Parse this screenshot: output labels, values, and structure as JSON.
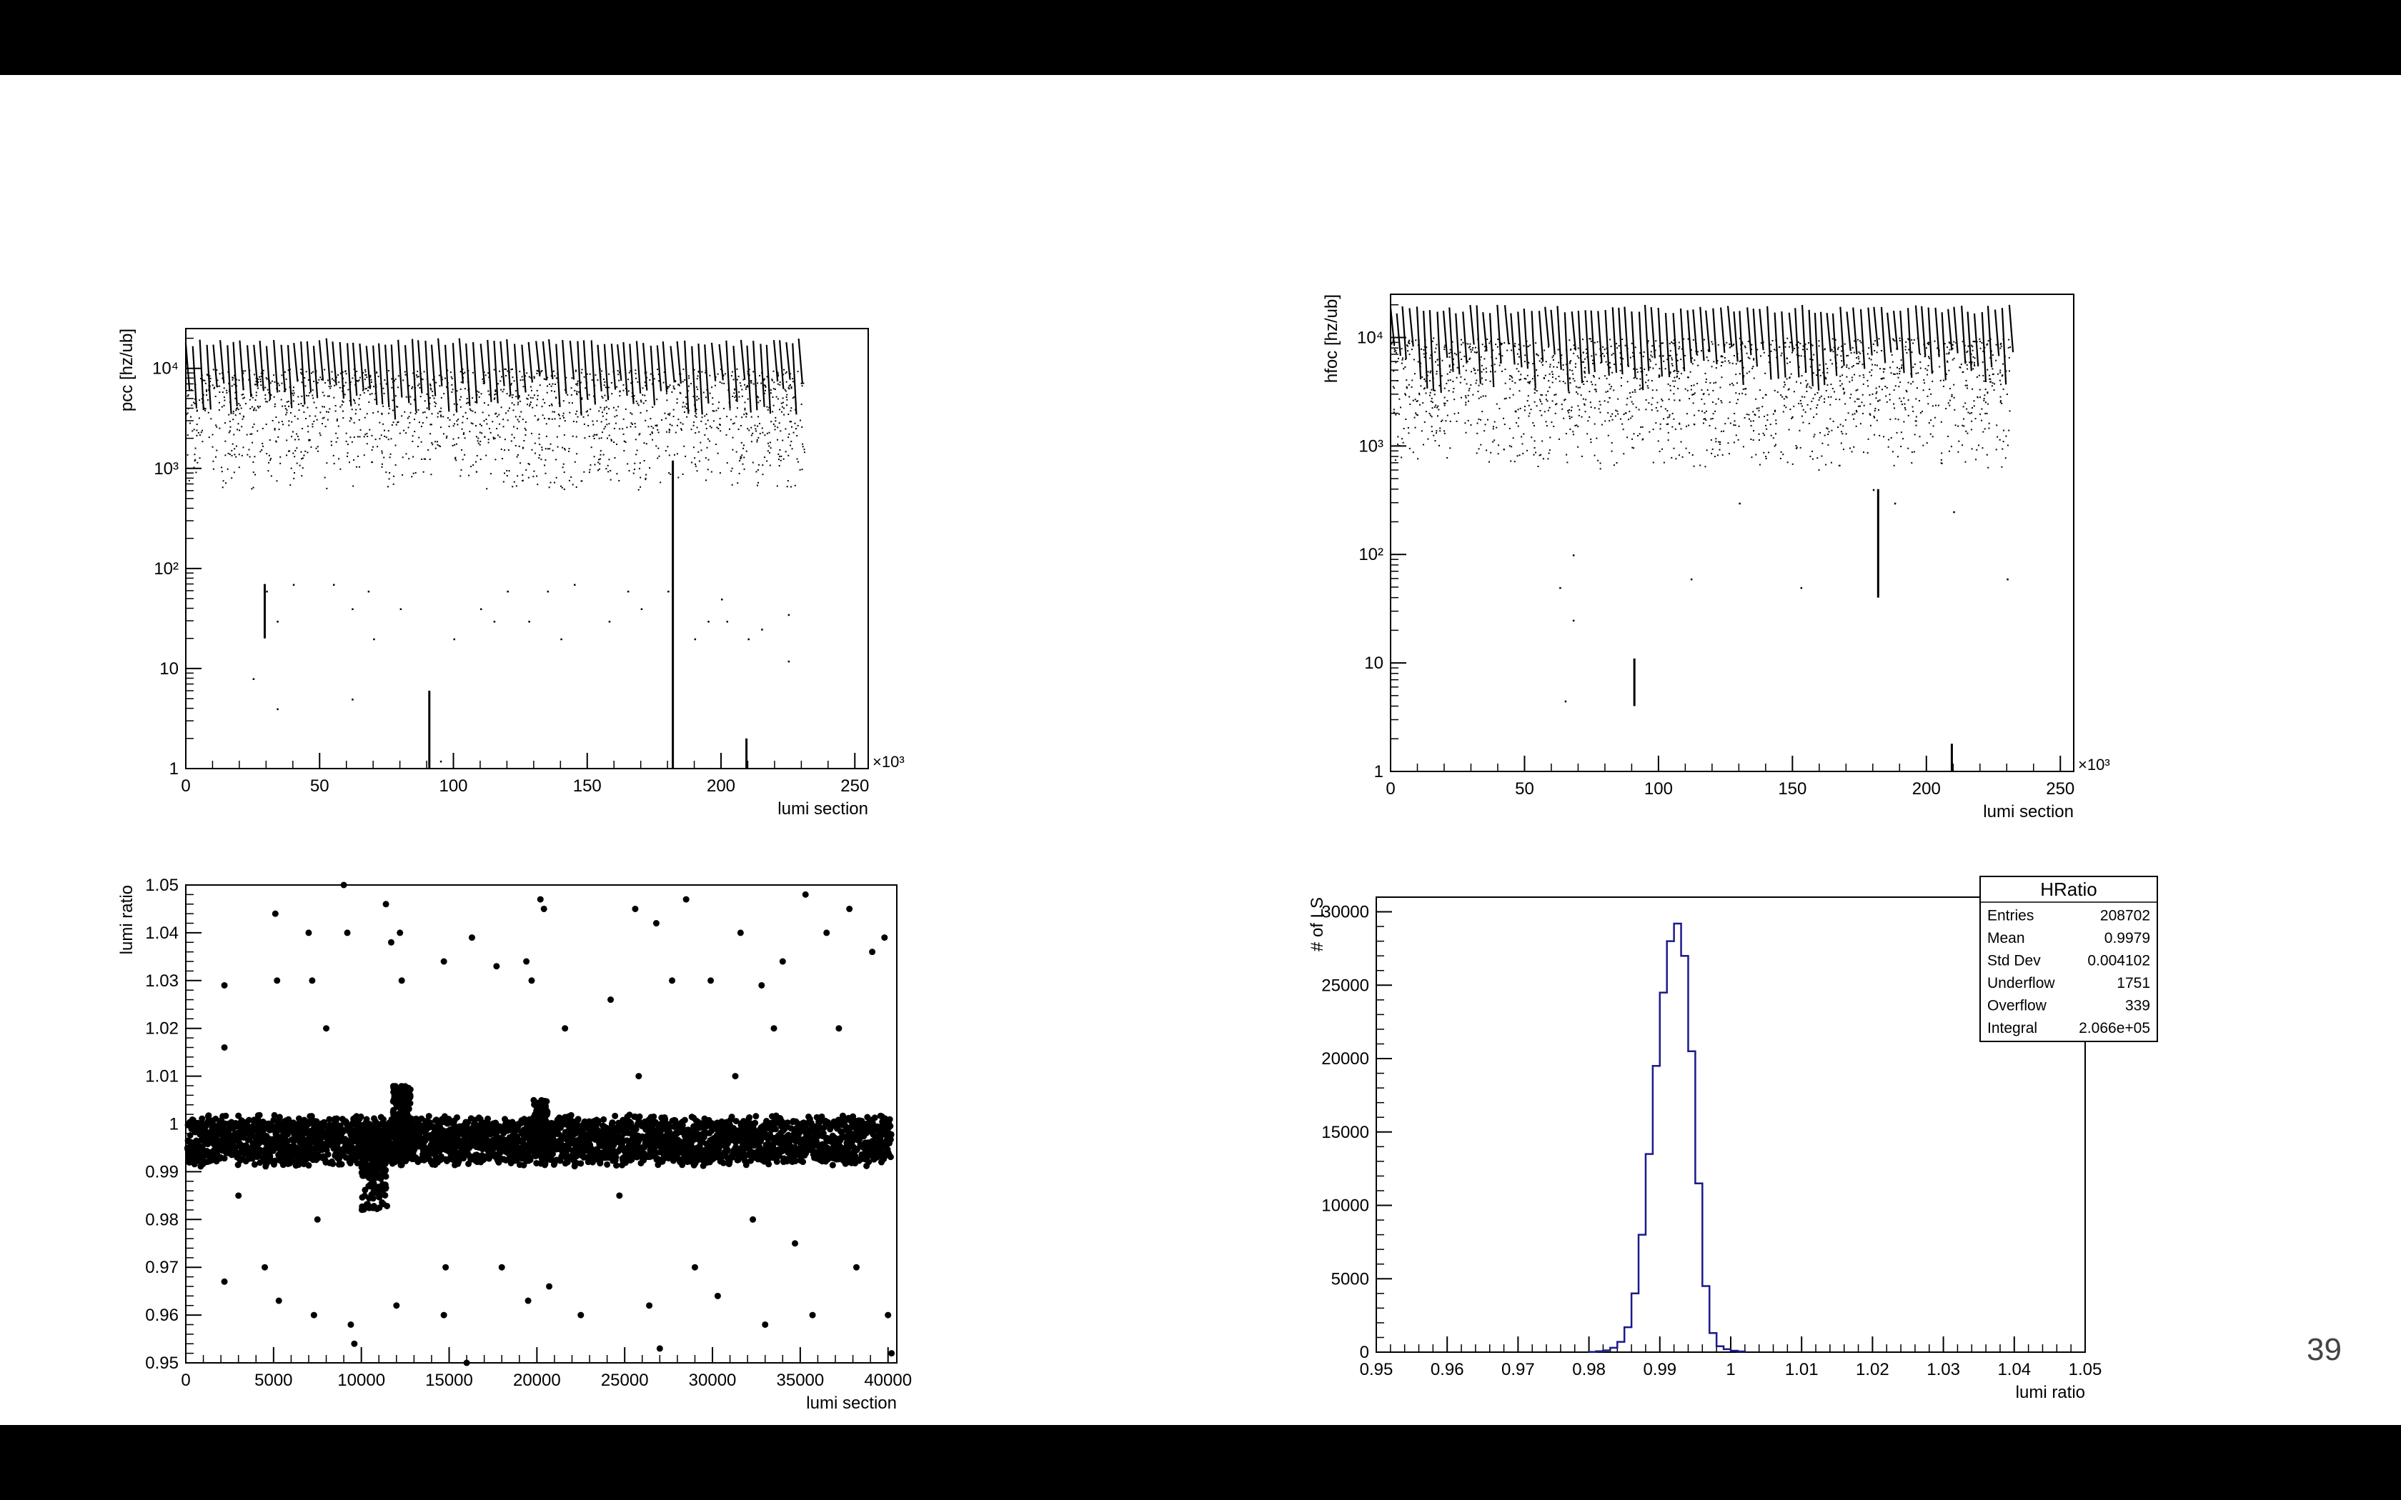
{
  "slide": {
    "page_number": "39"
  },
  "chart_data": [
    {
      "id": "pcc",
      "type": "scatter",
      "ylabel": "pcc [hz/ub]",
      "xlabel": "lumi section",
      "x_multiplier_label": "×10³",
      "ylog": true,
      "xlim": [
        0,
        255
      ],
      "ylim": [
        1,
        25000
      ],
      "x_ticks": [
        0,
        50,
        100,
        150,
        200,
        250
      ],
      "x_tick_labels": [
        "0",
        "50",
        "100",
        "150",
        "200",
        "250"
      ],
      "y_ticks": [
        1,
        10,
        100,
        1000,
        10000
      ],
      "y_tick_labels": [
        "1",
        "10",
        "10²",
        "10³",
        "10⁴"
      ],
      "data_extent": [
        0,
        231
      ],
      "main_band": [
        600,
        20000
      ],
      "vertical_streaks": [
        {
          "x": 29.5,
          "y": [
            20,
            70
          ]
        },
        {
          "x": 91,
          "y": [
            1,
            6
          ]
        },
        {
          "x": 182,
          "y": [
            1,
            1200
          ]
        },
        {
          "x": 209.5,
          "y": [
            1,
            2
          ]
        }
      ],
      "outliers": [
        [
          25,
          8
        ],
        [
          30,
          60
        ],
        [
          34,
          4
        ],
        [
          34,
          30
        ],
        [
          40,
          70
        ],
        [
          55,
          70
        ],
        [
          62,
          5
        ],
        [
          62,
          40
        ],
        [
          68,
          60
        ],
        [
          70,
          20
        ],
        [
          80,
          40
        ],
        [
          95,
          1.2
        ],
        [
          100,
          20
        ],
        [
          110,
          40
        ],
        [
          115,
          30
        ],
        [
          120,
          60
        ],
        [
          128,
          30
        ],
        [
          135,
          60
        ],
        [
          140,
          20
        ],
        [
          145,
          70
        ],
        [
          158,
          30
        ],
        [
          165,
          60
        ],
        [
          170,
          40
        ],
        [
          180,
          60
        ],
        [
          190,
          20
        ],
        [
          195,
          30
        ],
        [
          200,
          50
        ],
        [
          202,
          30
        ],
        [
          210,
          20
        ],
        [
          215,
          25
        ],
        [
          225,
          35
        ],
        [
          225,
          12
        ]
      ]
    },
    {
      "id": "hfoc",
      "type": "scatter",
      "ylabel": "hfoc [hz/ub]",
      "xlabel": "lumi section",
      "x_multiplier_label": "×10³",
      "ylog": true,
      "xlim": [
        0,
        255
      ],
      "ylim": [
        1,
        25000
      ],
      "x_ticks": [
        0,
        50,
        100,
        150,
        200,
        250
      ],
      "x_tick_labels": [
        "0",
        "50",
        "100",
        "150",
        "200",
        "250"
      ],
      "y_ticks": [
        1,
        10,
        100,
        1000,
        10000
      ],
      "y_tick_labels": [
        "1",
        "10",
        "10²",
        "10³",
        "10⁴"
      ],
      "data_extent": [
        0,
        231
      ],
      "main_band": [
        600,
        20000
      ],
      "vertical_streaks": [
        {
          "x": 91,
          "y": [
            4,
            11
          ]
        },
        {
          "x": 182,
          "y": [
            40,
            400
          ]
        },
        {
          "x": 209.5,
          "y": [
            1,
            1.8
          ]
        }
      ],
      "outliers": [
        [
          63,
          50
        ],
        [
          65,
          4.5
        ],
        [
          68,
          25
        ],
        [
          68,
          100
        ],
        [
          112,
          60
        ],
        [
          130,
          300
        ],
        [
          153,
          50
        ],
        [
          180,
          400
        ],
        [
          188,
          300
        ],
        [
          210,
          250
        ],
        [
          230,
          60
        ]
      ]
    },
    {
      "id": "ratio_vs_ls",
      "type": "scatter",
      "ylabel": "lumi ratio",
      "xlabel": "lumi section",
      "xlim": [
        0,
        40500
      ],
      "ylim": [
        0.95,
        1.05
      ],
      "x_ticks": [
        0,
        5000,
        10000,
        15000,
        20000,
        25000,
        30000,
        35000,
        40000
      ],
      "x_tick_labels": [
        "0",
        "5000",
        "10000",
        "15000",
        "20000",
        "25000",
        "30000",
        "35000",
        "40000"
      ],
      "y_ticks": [
        0.95,
        0.96,
        0.97,
        0.98,
        0.99,
        1,
        1.01,
        1.02,
        1.03,
        1.04,
        1.05
      ],
      "y_tick_labels": [
        "0.95",
        "0.96",
        "0.97",
        "0.98",
        "0.99",
        "1",
        "1.01",
        "1.02",
        "1.03",
        "1.04",
        "1.05"
      ],
      "main_band": [
        0.992,
        1.001
      ],
      "features": [
        {
          "x": [
            10000,
            11500
          ],
          "y": [
            0.982,
            0.998
          ]
        },
        {
          "x": [
            11800,
            12800
          ],
          "y": [
            0.995,
            1.008
          ]
        },
        {
          "x": [
            19800,
            20600
          ],
          "y": [
            0.995,
            1.005
          ]
        }
      ],
      "outliers": [
        [
          2200,
          1.029
        ],
        [
          2200,
          1.016
        ],
        [
          2200,
          0.967
        ],
        [
          3000,
          0.985
        ],
        [
          4500,
          0.97
        ],
        [
          5100,
          1.044
        ],
        [
          5200,
          1.03
        ],
        [
          5300,
          0.963
        ],
        [
          7000,
          1.04
        ],
        [
          7200,
          1.03
        ],
        [
          7300,
          0.96
        ],
        [
          7500,
          0.98
        ],
        [
          8000,
          1.02
        ],
        [
          9000,
          1.05
        ],
        [
          9200,
          1.04
        ],
        [
          9400,
          0.958
        ],
        [
          9600,
          0.954
        ],
        [
          11400,
          1.046
        ],
        [
          11700,
          1.038
        ],
        [
          12200,
          1.04
        ],
        [
          12300,
          1.03
        ],
        [
          12000,
          0.962
        ],
        [
          14700,
          1.034
        ],
        [
          14800,
          0.97
        ],
        [
          14700,
          0.96
        ],
        [
          16300,
          1.039
        ],
        [
          16000,
          0.95
        ],
        [
          17700,
          1.033
        ],
        [
          18000,
          0.97
        ],
        [
          19400,
          1.034
        ],
        [
          19700,
          1.03
        ],
        [
          19500,
          0.963
        ],
        [
          20200,
          1.047
        ],
        [
          20400,
          1.045
        ],
        [
          20700,
          0.966
        ],
        [
          21600,
          1.02
        ],
        [
          22500,
          0.96
        ],
        [
          24200,
          1.026
        ],
        [
          24700,
          0.985
        ],
        [
          25600,
          1.045
        ],
        [
          25800,
          1.01
        ],
        [
          26400,
          0.962
        ],
        [
          26800,
          1.042
        ],
        [
          27000,
          0.953
        ],
        [
          27700,
          1.03
        ],
        [
          28500,
          1.047
        ],
        [
          29000,
          0.97
        ],
        [
          29900,
          1.03
        ],
        [
          30300,
          0.964
        ],
        [
          31300,
          1.01
        ],
        [
          31600,
          1.04
        ],
        [
          32300,
          0.98
        ],
        [
          32800,
          1.029
        ],
        [
          33000,
          0.958
        ],
        [
          33500,
          1.02
        ],
        [
          34000,
          1.034
        ],
        [
          34700,
          0.975
        ],
        [
          35300,
          1.048
        ],
        [
          35700,
          0.96
        ],
        [
          36500,
          1.04
        ],
        [
          37200,
          1.02
        ],
        [
          37800,
          1.045
        ],
        [
          38200,
          0.97
        ],
        [
          39100,
          1.036
        ],
        [
          39800,
          1.039
        ],
        [
          40000,
          0.96
        ],
        [
          40200,
          0.952
        ]
      ]
    },
    {
      "id": "hratio",
      "type": "histogram",
      "ylabel": "# of LS",
      "xlabel": "lumi ratio",
      "xlim": [
        0.95,
        1.05
      ],
      "ylim": [
        0,
        31000
      ],
      "x_ticks": [
        0.95,
        0.96,
        0.97,
        0.98,
        0.99,
        1,
        1.01,
        1.02,
        1.03,
        1.04,
        1.05
      ],
      "x_tick_labels": [
        "0.95",
        "0.96",
        "0.97",
        "0.98",
        "0.99",
        "1",
        "1.01",
        "1.02",
        "1.03",
        "1.04",
        "1.05"
      ],
      "y_ticks": [
        0,
        5000,
        10000,
        15000,
        20000,
        25000,
        30000
      ],
      "y_tick_labels": [
        "0",
        "5000",
        "10000",
        "15000",
        "20000",
        "25000",
        "30000"
      ],
      "bin_edges_start": 0.98,
      "bin_width": 0.001,
      "values": [
        20,
        60,
        120,
        300,
        700,
        1700,
        4000,
        8000,
        13500,
        19500,
        24500,
        28000,
        29200,
        27000,
        20500,
        11500,
        4500,
        1300,
        400,
        200,
        100,
        50
      ],
      "line_color": "#1a1a8c",
      "stats_box": {
        "title": "HRatio",
        "rows": [
          {
            "label": "Entries",
            "value": "208702"
          },
          {
            "label": "Mean",
            "value": "0.9979"
          },
          {
            "label": "Std Dev",
            "value": "0.004102"
          },
          {
            "label": "Underflow",
            "value": "1751"
          },
          {
            "label": "Overflow",
            "value": "339"
          },
          {
            "label": "Integral",
            "value": "2.066e+05"
          }
        ]
      }
    }
  ]
}
